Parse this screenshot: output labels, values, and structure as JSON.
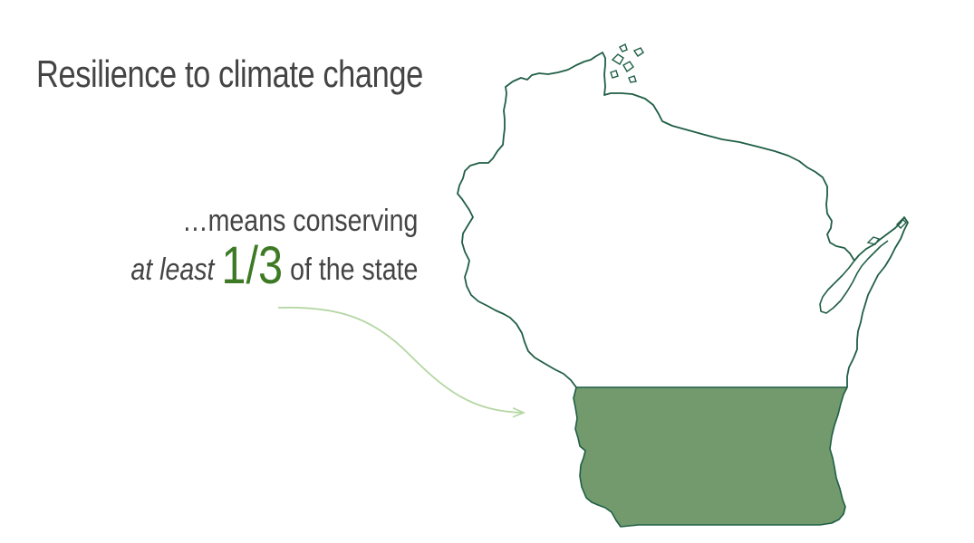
{
  "title": "Resilience to climate change",
  "callout": {
    "line1": "…means conserving",
    "prefix": "at least",
    "fraction": "1/3",
    "suffix": "of the state"
  },
  "colors": {
    "title_text": "#444444",
    "fraction_text": "#3e7a26",
    "state_outline": "#1f5e45",
    "conserved_fill": "#729a6d",
    "arrow": "#b5d7a4"
  },
  "conserved_share": 0.3333
}
